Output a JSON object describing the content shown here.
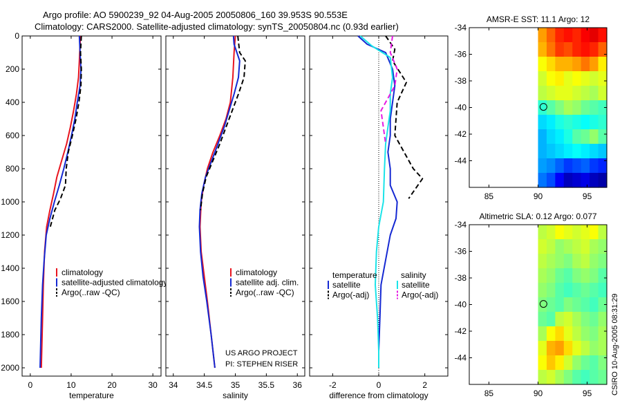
{
  "header": {
    "title_line1": "Argo profile: AO 5900239_92 04-Aug-2005 20050806_160 39.953S 90.553E",
    "title_line2": "Climatology: CARS2000. Satellite-adjusted climatology: synTS_20050804.nc (0.93d earlier)"
  },
  "footer": {
    "project": "US ARGO PROJECT",
    "pi": "PI: STEPHEN RISER",
    "side_stamp": "CSIRO 10-Aug-2005 08:31:29"
  },
  "colors": {
    "red": "#e8141e",
    "blue": "#1428d2",
    "black": "#000000",
    "cyan": "#19e3e8",
    "magenta": "#e619e3"
  },
  "chart_data": [
    {
      "id": "temperature",
      "type": "line",
      "xlabel": "temperature",
      "xlim": [
        -2,
        32
      ],
      "ylim": [
        0,
        2050
      ],
      "xticks": [
        0,
        10,
        20,
        30
      ],
      "yticks": [
        0,
        200,
        400,
        600,
        800,
        1000,
        1200,
        1400,
        1600,
        1800,
        2000
      ],
      "legend": [
        "climatology",
        "satellite-adjusted climatology",
        "Argo(..raw -QC)"
      ],
      "series": [
        {
          "name": "climatology",
          "color": "red",
          "dash": false,
          "points": [
            [
              12.3,
              0
            ],
            [
              12.2,
              50
            ],
            [
              12.0,
              150
            ],
            [
              11.8,
              250
            ],
            [
              11.3,
              350
            ],
            [
              10.6,
              450
            ],
            [
              9.8,
              550
            ],
            [
              8.9,
              650
            ],
            [
              7.7,
              750
            ],
            [
              6.5,
              850
            ],
            [
              5.7,
              950
            ],
            [
              4.8,
              1050
            ],
            [
              4.0,
              1150
            ],
            [
              3.5,
              1300
            ],
            [
              3.2,
              1500
            ],
            [
              3.0,
              1700
            ],
            [
              2.8,
              1900
            ],
            [
              2.7,
              2000
            ]
          ]
        },
        {
          "name": "satellite-adjusted climatology",
          "color": "blue",
          "dash": false,
          "points": [
            [
              12.0,
              0
            ],
            [
              12.2,
              100
            ],
            [
              12.4,
              200
            ],
            [
              12.2,
              300
            ],
            [
              11.5,
              400
            ],
            [
              10.9,
              500
            ],
            [
              10.1,
              600
            ],
            [
              9.2,
              700
            ],
            [
              8.2,
              800
            ],
            [
              7.1,
              900
            ],
            [
              5.9,
              1000
            ],
            [
              4.8,
              1100
            ],
            [
              3.9,
              1200
            ],
            [
              3.4,
              1350
            ],
            [
              3.0,
              1500
            ],
            [
              2.7,
              1700
            ],
            [
              2.5,
              1900
            ],
            [
              2.4,
              2000
            ]
          ]
        },
        {
          "name": "Argo(..raw -QC)",
          "color": "black",
          "dash": true,
          "points": [
            [
              12.5,
              0
            ],
            [
              12.3,
              100
            ],
            [
              12.5,
              200
            ],
            [
              12.4,
              300
            ],
            [
              11.9,
              400
            ],
            [
              11.2,
              500
            ],
            [
              10.3,
              600
            ],
            [
              9.3,
              700
            ],
            [
              8.8,
              800
            ],
            [
              8.6,
              900
            ],
            [
              7.4,
              980
            ],
            [
              6.0,
              1050
            ],
            [
              4.9,
              1150
            ]
          ]
        }
      ]
    },
    {
      "id": "salinity",
      "type": "line",
      "xlabel": "salinity",
      "xlim": [
        33.88,
        36.12
      ],
      "ylim": [
        0,
        2050
      ],
      "xticks": [
        34,
        34.5,
        35,
        35.5,
        36
      ],
      "yticks": [
        0,
        200,
        400,
        600,
        800,
        1000,
        1200,
        1400,
        1600,
        1800,
        2000
      ],
      "legend": [
        "climatology",
        "satellite adj. clim.",
        "Argo(..raw -QC)"
      ],
      "series": [
        {
          "name": "climatology",
          "color": "red",
          "dash": false,
          "points": [
            [
              35.0,
              0
            ],
            [
              34.98,
              100
            ],
            [
              34.96,
              250
            ],
            [
              34.92,
              400
            ],
            [
              34.85,
              500
            ],
            [
              34.75,
              600
            ],
            [
              34.64,
              700
            ],
            [
              34.55,
              800
            ],
            [
              34.49,
              900
            ],
            [
              34.45,
              1000
            ],
            [
              34.43,
              1150
            ],
            [
              34.45,
              1300
            ],
            [
              34.5,
              1450
            ],
            [
              34.55,
              1600
            ],
            [
              34.61,
              1800
            ],
            [
              34.67,
              2000
            ]
          ]
        },
        {
          "name": "satellite adj. clim.",
          "color": "blue",
          "dash": false,
          "points": [
            [
              34.97,
              0
            ],
            [
              34.98,
              50
            ],
            [
              35.07,
              150
            ],
            [
              35.05,
              250
            ],
            [
              34.98,
              350
            ],
            [
              34.9,
              450
            ],
            [
              34.82,
              550
            ],
            [
              34.72,
              650
            ],
            [
              34.62,
              750
            ],
            [
              34.52,
              850
            ],
            [
              34.46,
              950
            ],
            [
              34.43,
              1050
            ],
            [
              34.42,
              1150
            ],
            [
              34.44,
              1300
            ],
            [
              34.48,
              1450
            ],
            [
              34.54,
              1600
            ],
            [
              34.61,
              1800
            ],
            [
              34.67,
              2000
            ]
          ]
        },
        {
          "name": "Argo(..raw -QC)",
          "color": "black",
          "dash": true,
          "points": [
            [
              35.04,
              0
            ],
            [
              35.07,
              100
            ],
            [
              35.16,
              150
            ],
            [
              35.14,
              250
            ],
            [
              35.05,
              350
            ],
            [
              34.95,
              450
            ],
            [
              34.85,
              550
            ],
            [
              34.75,
              650
            ],
            [
              34.64,
              750
            ],
            [
              34.53,
              850
            ],
            [
              34.47,
              950
            ],
            [
              34.44,
              1050
            ]
          ]
        }
      ]
    },
    {
      "id": "difference",
      "type": "line",
      "xlabel": "difference from climatology",
      "xlim": [
        -3,
        3
      ],
      "ylim": [
        0,
        2050
      ],
      "xticks": [
        -2,
        0,
        2
      ],
      "yticks": [
        0,
        200,
        400,
        600,
        800,
        1000,
        1200,
        1400,
        1600,
        1800,
        2000
      ],
      "zero_line": 0,
      "legend_titles": [
        "temperature",
        "salinity"
      ],
      "legend": [
        "satellite",
        "Argo(-adj)",
        "satellite",
        "Argo(-adj)"
      ],
      "series": [
        {
          "name": "temperature satellite",
          "color": "blue",
          "dash": false,
          "points": [
            [
              -0.9,
              0
            ],
            [
              -0.5,
              50
            ],
            [
              0.3,
              100
            ],
            [
              0.6,
              200
            ],
            [
              0.7,
              300
            ],
            [
              0.6,
              400
            ],
            [
              0.5,
              500
            ],
            [
              0.5,
              600
            ],
            [
              0.4,
              700
            ],
            [
              0.5,
              800
            ],
            [
              0.5,
              900
            ],
            [
              0.8,
              1000
            ],
            [
              0.75,
              1100
            ],
            [
              0.5,
              1200
            ],
            [
              0.3,
              1350
            ],
            [
              0.1,
              1500
            ],
            [
              0.05,
              1700
            ],
            [
              0.0,
              1900
            ],
            [
              0.0,
              2000
            ]
          ]
        },
        {
          "name": "temperature Argo(-adj)",
          "color": "black",
          "dash": true,
          "points": [
            [
              0.3,
              0
            ],
            [
              0.7,
              80
            ],
            [
              0.6,
              150
            ],
            [
              1.2,
              280
            ],
            [
              0.8,
              400
            ],
            [
              0.7,
              600
            ],
            [
              1.5,
              800
            ],
            [
              1.9,
              860
            ],
            [
              1.3,
              980
            ]
          ]
        },
        {
          "name": "salinity satellite",
          "color": "cyan",
          "dash": false,
          "points": [
            [
              -0.8,
              0
            ],
            [
              -0.3,
              60
            ],
            [
              0.5,
              130
            ],
            [
              0.6,
              250
            ],
            [
              0.5,
              350
            ],
            [
              0.5,
              450
            ],
            [
              0.4,
              550
            ],
            [
              0.3,
              650
            ],
            [
              0.25,
              800
            ],
            [
              0.2,
              1000
            ],
            [
              0.0,
              1150
            ],
            [
              -0.1,
              1300
            ],
            [
              -0.15,
              1500
            ],
            [
              -0.05,
              1700
            ],
            [
              0.0,
              1900
            ],
            [
              0.0,
              2000
            ]
          ]
        },
        {
          "name": "salinity Argo(-adj)",
          "color": "magenta",
          "dash": true,
          "points": [
            [
              0.6,
              0
            ],
            [
              0.5,
              100
            ],
            [
              0.8,
              200
            ],
            [
              0.7,
              300
            ],
            [
              0.3,
              400
            ],
            [
              0.1,
              450
            ],
            [
              0.2,
              550
            ],
            [
              0.3,
              650
            ]
          ]
        }
      ]
    },
    {
      "id": "sst-map",
      "type": "heatmap",
      "title": "AMSR-E SST: 11.1 Argo: 12",
      "xlim": [
        83,
        97
      ],
      "ylim": [
        -46,
        -34
      ],
      "xticks": [
        85,
        90,
        95
      ],
      "yticks": [
        -34,
        -36,
        -38,
        -40,
        -42,
        -44
      ],
      "data_lon_range": [
        90,
        97
      ],
      "marker": {
        "lon": 90.553,
        "lat": -39.953
      },
      "cols": 8,
      "rows": 11,
      "grid": [
        [
          0.72,
          0.78,
          0.84,
          0.86,
          0.84,
          0.88,
          0.9,
          0.86
        ],
        [
          0.7,
          0.76,
          0.82,
          0.8,
          0.84,
          0.86,
          0.84,
          0.78
        ],
        [
          0.62,
          0.66,
          0.7,
          0.7,
          0.72,
          0.76,
          0.72,
          0.64
        ],
        [
          0.58,
          0.62,
          0.64,
          0.6,
          0.62,
          0.6,
          0.58,
          0.6
        ],
        [
          0.56,
          0.58,
          0.6,
          0.6,
          0.58,
          0.56,
          0.54,
          0.58
        ],
        [
          0.42,
          0.46,
          0.5,
          0.54,
          0.52,
          0.48,
          0.46,
          0.44
        ],
        [
          0.34,
          0.36,
          0.4,
          0.42,
          0.4,
          0.38,
          0.4,
          0.42
        ],
        [
          0.3,
          0.34,
          0.36,
          0.4,
          0.46,
          0.48,
          0.52,
          0.46
        ],
        [
          0.3,
          0.32,
          0.34,
          0.36,
          0.38,
          0.36,
          0.34,
          0.32
        ],
        [
          0.28,
          0.26,
          0.22,
          0.18,
          0.2,
          0.22,
          0.18,
          0.16
        ],
        [
          0.24,
          0.2,
          0.12,
          0.06,
          0.08,
          0.1,
          0.06,
          0.04
        ]
      ]
    },
    {
      "id": "sla-map",
      "type": "heatmap",
      "title": "Altimetric SLA: 0.12 Argo: 0.077",
      "xlim": [
        83,
        97
      ],
      "ylim": [
        -46,
        -34
      ],
      "xticks": [
        85,
        90,
        95
      ],
      "yticks": [
        -34,
        -36,
        -38,
        -40,
        -42,
        -44
      ],
      "data_lon_range": [
        90,
        97
      ],
      "marker": {
        "lon": 90.553,
        "lat": -39.953
      },
      "cols": 8,
      "rows": 11,
      "grid": [
        [
          0.56,
          0.58,
          0.62,
          0.6,
          0.58,
          0.6,
          0.62,
          0.56
        ],
        [
          0.58,
          0.56,
          0.52,
          0.54,
          0.56,
          0.58,
          0.54,
          0.52
        ],
        [
          0.56,
          0.54,
          0.52,
          0.5,
          0.54,
          0.56,
          0.52,
          0.5
        ],
        [
          0.54,
          0.52,
          0.48,
          0.46,
          0.5,
          0.52,
          0.5,
          0.46
        ],
        [
          0.52,
          0.5,
          0.46,
          0.44,
          0.46,
          0.48,
          0.46,
          0.44
        ],
        [
          0.5,
          0.48,
          0.46,
          0.5,
          0.48,
          0.46,
          0.44,
          0.48
        ],
        [
          0.48,
          0.46,
          0.56,
          0.58,
          0.54,
          0.5,
          0.48,
          0.52
        ],
        [
          0.54,
          0.62,
          0.66,
          0.6,
          0.56,
          0.52,
          0.5,
          0.54
        ],
        [
          0.6,
          0.7,
          0.72,
          0.66,
          0.6,
          0.56,
          0.52,
          0.54
        ],
        [
          0.62,
          0.68,
          0.64,
          0.58,
          0.52,
          0.48,
          0.46,
          0.5
        ],
        [
          0.56,
          0.58,
          0.54,
          0.5,
          0.46,
          0.44,
          0.46,
          0.48
        ]
      ]
    }
  ]
}
